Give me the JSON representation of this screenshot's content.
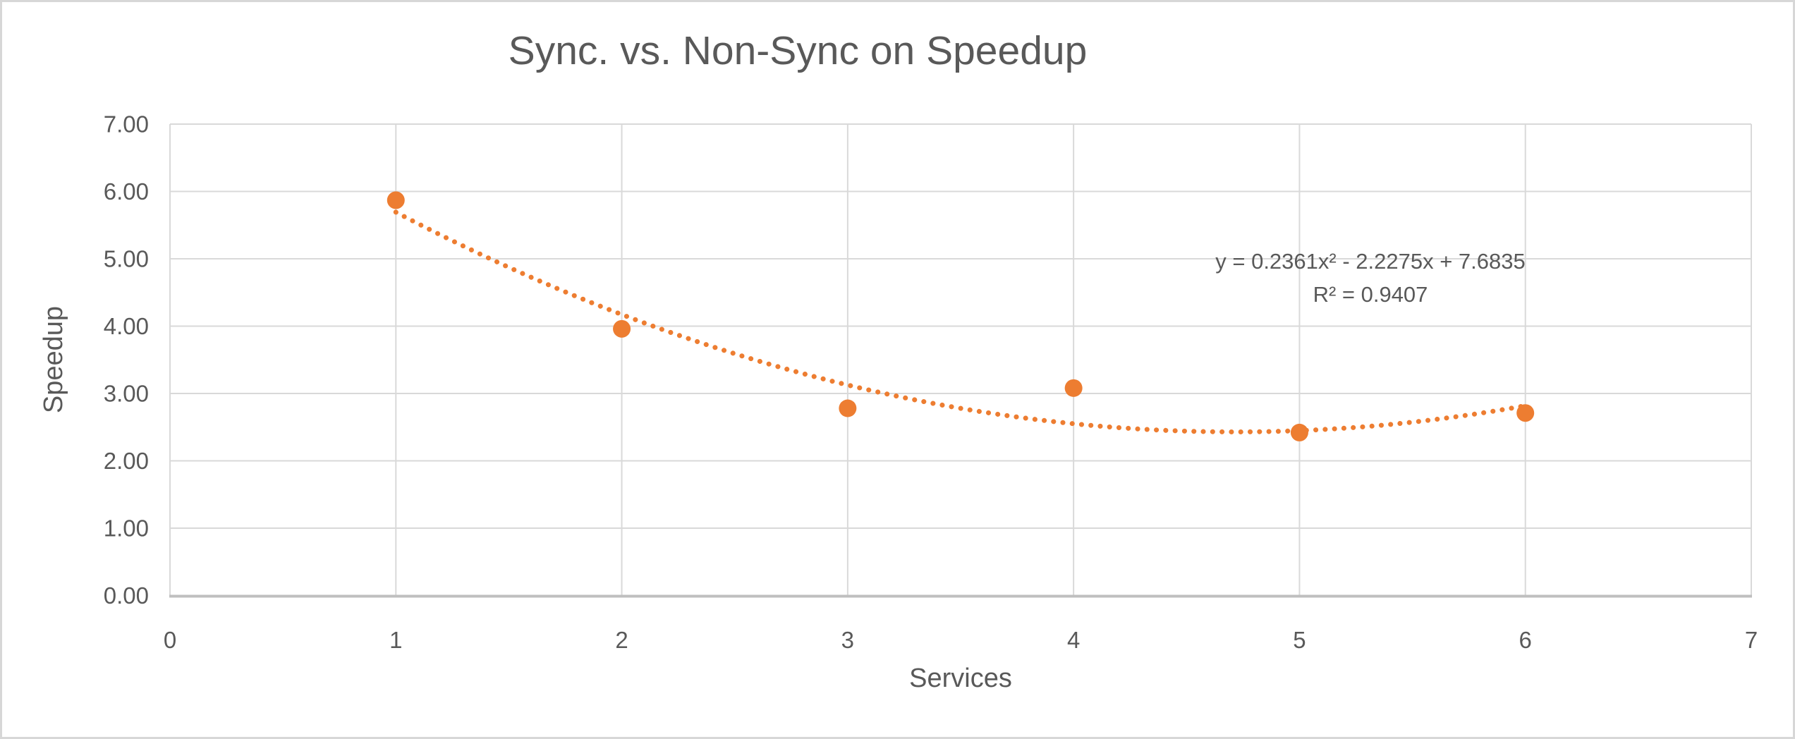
{
  "chart_data": {
    "type": "scatter",
    "title": "Sync. vs. Non-Sync on Speedup",
    "xlabel": "Services",
    "ylabel": "Speedup",
    "series": [
      {
        "name": "Speedup",
        "color": "#ED7D31",
        "points": [
          {
            "x": 1,
            "y": 5.87
          },
          {
            "x": 2,
            "y": 3.96
          },
          {
            "x": 3,
            "y": 2.78
          },
          {
            "x": 4,
            "y": 3.08
          },
          {
            "x": 5,
            "y": 2.42
          },
          {
            "x": 6,
            "y": 2.71
          }
        ]
      }
    ],
    "trendline": {
      "kind": "polynomial",
      "degree": 2,
      "coefficients": {
        "a": 0.2361,
        "b": -2.2275,
        "c": 7.6835
      },
      "x_start": 1,
      "x_end": 6,
      "style": "dotted",
      "color": "#ED7D31",
      "equation_label": "y = 0.2361x² - 2.2275x + 7.6835",
      "r2_label": "R² = 0.9407"
    },
    "xlim": [
      0,
      7
    ],
    "ylim": [
      0,
      7
    ],
    "x_ticks": [
      "0",
      "1",
      "2",
      "3",
      "4",
      "5",
      "6",
      "7"
    ],
    "y_ticks": [
      "0.00",
      "1.00",
      "2.00",
      "3.00",
      "4.00",
      "5.00",
      "6.00",
      "7.00"
    ],
    "grid": true,
    "legend": "none",
    "colors": {
      "text": "#595959",
      "gridline": "#D9D9D9",
      "axis_line": "#BFBFBF",
      "canvas_border": "#D7D7D7",
      "background": "#FFFFFF"
    }
  }
}
